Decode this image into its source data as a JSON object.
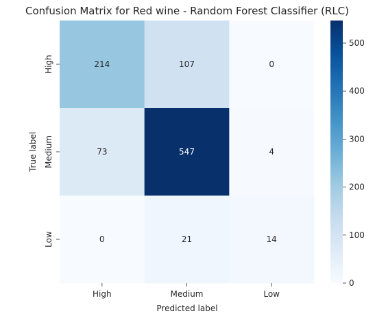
{
  "chart_data": {
    "type": "heatmap",
    "title": "Confusion Matrix for Red wine - Random Forest Classifier (RLC)",
    "xlabel": "Predicted label",
    "ylabel": "True label",
    "x_categories": [
      "High",
      "Medium",
      "Low"
    ],
    "y_categories": [
      "High",
      "Medium",
      "Low"
    ],
    "values": [
      [
        214,
        107,
        0
      ],
      [
        73,
        547,
        4
      ],
      [
        0,
        21,
        14
      ]
    ],
    "colorbar": {
      "min": 0,
      "max": 547,
      "ticks": [
        0,
        100,
        200,
        300,
        400,
        500
      ]
    },
    "colormap": "Blues",
    "colors": [
      "#f7fbff",
      "#deebf7",
      "#c6dbef",
      "#9ecae1",
      "#6baed6",
      "#4292c6",
      "#2171b5",
      "#08519c",
      "#08306b"
    ]
  }
}
